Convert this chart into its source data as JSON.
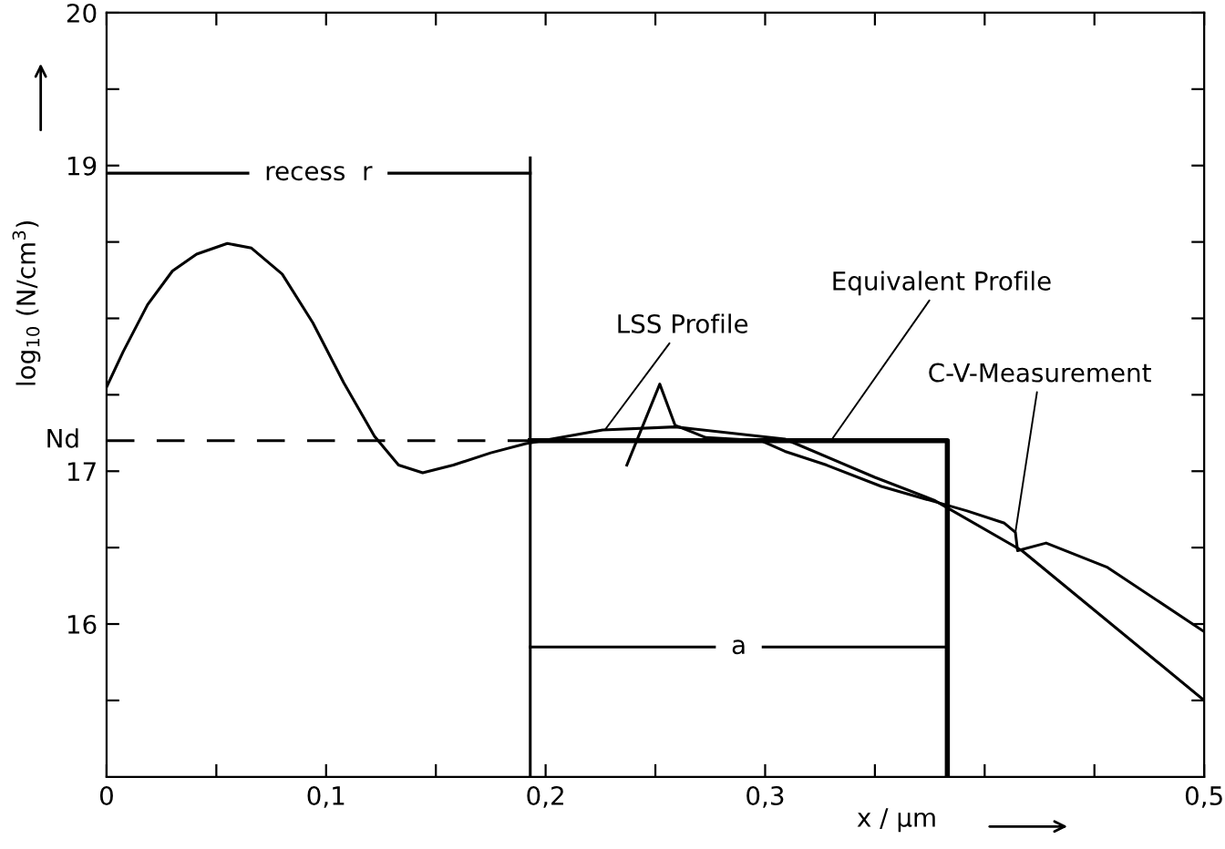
{
  "chart_data": {
    "type": "line",
    "xlabel": "x / µm",
    "ylabel": "log$_{10}$ (N/cm$^{3}$)",
    "xlim": [
      0,
      0.5
    ],
    "ylim": [
      15,
      20
    ],
    "xticks": [
      0,
      {
        "value": 0.05,
        "label": null
      },
      {
        "value": 0.1,
        "label": "0,1"
      },
      {
        "value": 0.15,
        "label": null
      },
      {
        "value": 0.2,
        "label": "0,2"
      },
      {
        "value": 0.25,
        "label": null
      },
      {
        "value": 0.3,
        "label": "0,3"
      },
      {
        "value": 0.35,
        "label": null
      },
      {
        "value": 0.4,
        "label": null
      },
      {
        "value": 0.45,
        "label": null
      },
      {
        "value": 0.5,
        "label": "0,5"
      }
    ],
    "yticks": [
      {
        "value": 15.5,
        "label": null
      },
      16,
      {
        "value": 16.5,
        "label": null
      },
      17,
      {
        "value": 17.5,
        "label": null
      },
      {
        "value": 18,
        "label": null
      },
      {
        "value": 18.5,
        "label": null
      },
      19,
      {
        "value": 19.5,
        "label": null
      },
      20
    ],
    "grid": false,
    "legend": false,
    "marker": "none",
    "series": [
      {
        "color": "#000000",
        "line_style": "solid",
        "x": [
          0,
          0.0075,
          0.0187,
          0.03,
          0.041,
          0.055,
          0.066,
          0.08,
          0.094,
          0.108,
          0.122,
          0.133,
          0.144,
          0.158,
          0.175,
          0.191,
          0.226,
          0.259,
          0.309,
          0.35,
          0.377,
          0.417,
          0.5
        ],
        "values": [
          17.55,
          17.78,
          18.09,
          18.31,
          18.42,
          18.49,
          18.46,
          18.29,
          17.97,
          17.58,
          17.23,
          17.04,
          16.99,
          17.04,
          17.12,
          17.18,
          17.27,
          17.29,
          17.21,
          16.96,
          16.81,
          16.48,
          15.5
        ]
      },
      {
        "color": "#000000",
        "line_style": "solid",
        "x": [
          0.237,
          0.252,
          0.259,
          0.273,
          0.298,
          0.309,
          0.328,
          0.353,
          0.375,
          0.392,
          0.409,
          0.414,
          0.415,
          0.428,
          0.456,
          0.5
        ],
        "values": [
          17.04,
          17.57,
          17.3,
          17.22,
          17.2,
          17.13,
          17.04,
          16.9,
          16.81,
          16.74,
          16.66,
          16.6,
          16.48,
          16.53,
          16.37,
          15.95
        ]
      },
      {
        "color": "#000000",
        "line_style": "solid",
        "x": [
          0.193,
          0.383,
          0.383
        ],
        "values": [
          17.2,
          17.2,
          15
        ]
      },
      {
        "color": "#000000",
        "line_style": "dashed",
        "x": [
          0,
          0.193
        ],
        "values": [
          17.2,
          17.2
        ]
      },
      {
        "color": "#000000",
        "line_style": "solid",
        "x": [
          0.193,
          0.193
        ],
        "values": [
          15,
          19.05
        ]
      },
      {
        "color": "#000000",
        "line_style": "solid",
        "x": [
          0,
          0.193
        ],
        "values": [
          18.95,
          18.95
        ]
      },
      {
        "color": "#000000",
        "line_style": "solid",
        "x": [
          0.193,
          0.383
        ],
        "values": [
          15.85,
          15.85
        ]
      }
    ],
    "annotations": [
      {
        "text": "recess  r",
        "x": 0.0965,
        "y": 18.95
      },
      {
        "text": "a",
        "x": 0.288,
        "y": 15.85
      },
      {
        "text": "Nd",
        "x": 0,
        "y": 17.2
      },
      {
        "text": "LSS Profile",
        "x": 0.227,
        "y": 17.27
      },
      {
        "text": "Equivalent Profile",
        "x": 0.33,
        "y": 17.2
      },
      {
        "text": "C-V-Measurement",
        "x": 0.414,
        "y": 16.6
      }
    ]
  }
}
